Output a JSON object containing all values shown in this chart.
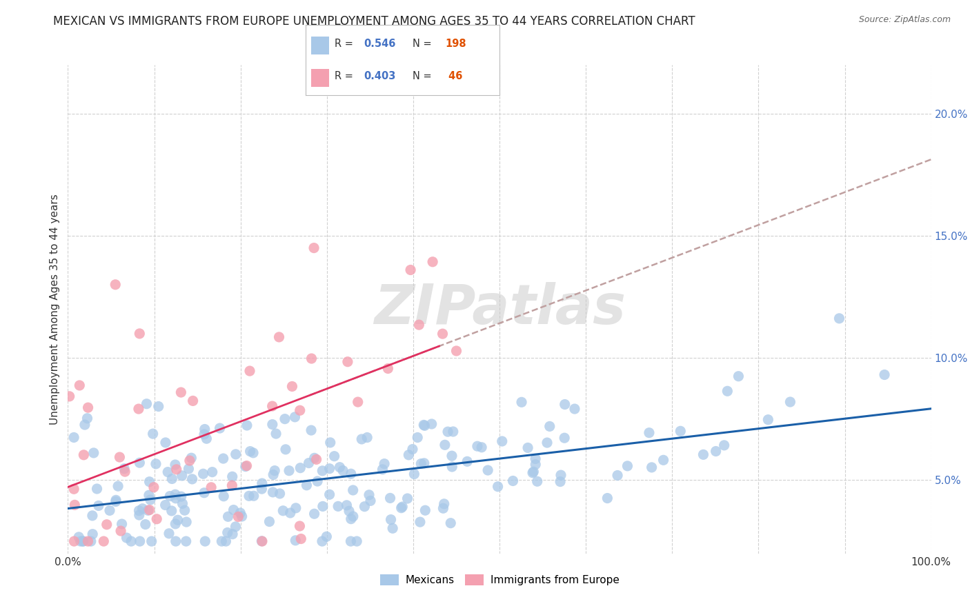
{
  "title": "MEXICAN VS IMMIGRANTS FROM EUROPE UNEMPLOYMENT AMONG AGES 35 TO 44 YEARS CORRELATION CHART",
  "source": "Source: ZipAtlas.com",
  "ylabel": "Unemployment Among Ages 35 to 44 years",
  "xlim": [
    0,
    1.0
  ],
  "ylim": [
    0.02,
    0.22
  ],
  "mexican_R": 0.546,
  "mexican_N": 198,
  "europe_R": 0.403,
  "europe_N": 46,
  "mexican_color": "#a8c8e8",
  "europe_color": "#f4a0b0",
  "mexican_line_color": "#1a5fa8",
  "europe_line_color": "#e03060",
  "dashed_line_color": "#c0a0a0",
  "watermark_zip": "ZIP",
  "watermark_atlas": "atlas",
  "watermark_color": "#d8d8d8",
  "legend_label_mexican": "Mexicans",
  "legend_label_europe": "Immigrants from Europe",
  "background_color": "#ffffff",
  "grid_color": "#d0d0d0",
  "title_fontsize": 12,
  "axis_label_fontsize": 11,
  "tick_fontsize": 11,
  "ytick_color": "#4472c4",
  "seed": 42
}
